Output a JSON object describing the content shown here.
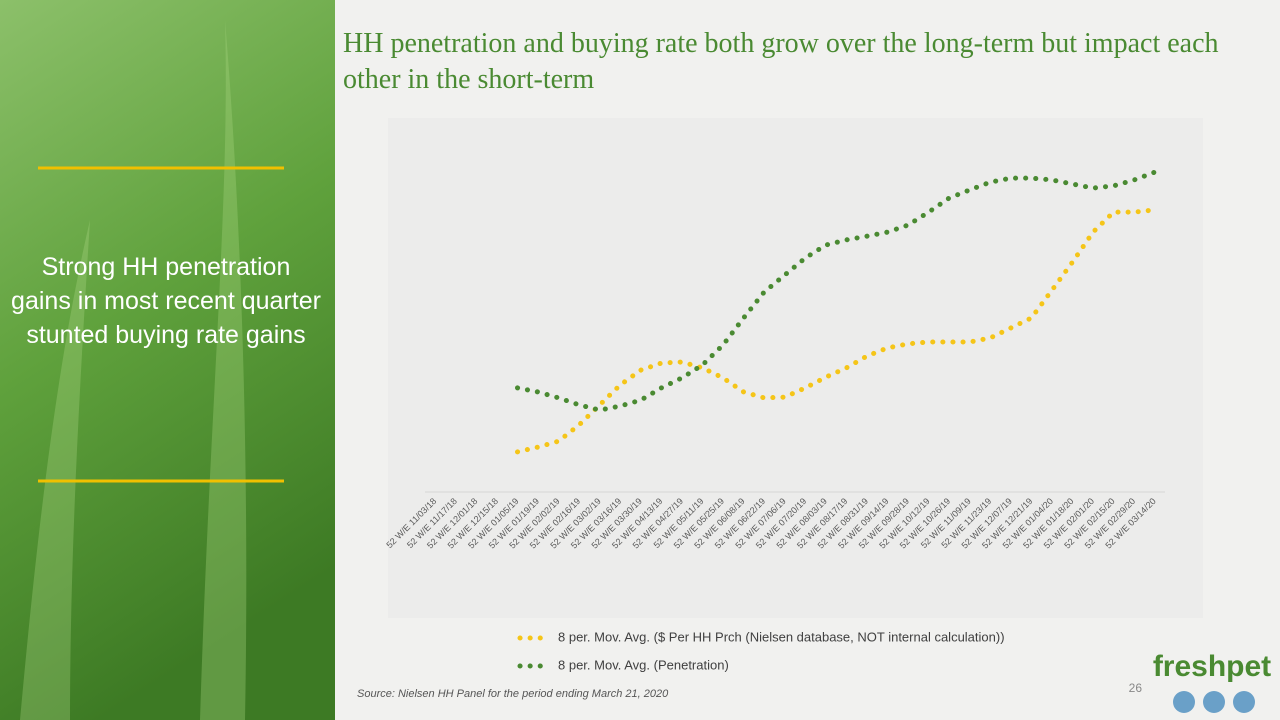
{
  "sidebar_text": "Strong HH penetration gains in most recent quarter stunted buying rate gains",
  "source": "Source:  Nielsen HH Panel for the period ending March 21, 2020",
  "page_number": "26",
  "logo": "freshpet",
  "chart_data": {
    "type": "line",
    "title": "HH penetration and buying rate both grow over the long-term but impact each other in the short-term",
    "categories": [
      "52 W/E 11/03/18",
      "52 W/E 11/17/18",
      "52 W/E 12/01/18",
      "52 W/E 12/15/18",
      "52 W/E 01/05/19",
      "52 W/E 01/19/19",
      "52 W/E 02/02/19",
      "52 W/E 02/16/19",
      "52 W/E 03/02/19",
      "52 W/E 03/16/19",
      "52 W/E 03/30/19",
      "52 W/E 04/13/19",
      "52 W/E 04/27/19",
      "52 W/E 05/11/19",
      "52 W/E 05/25/19",
      "52 W/E 06/08/19",
      "52 W/E 06/22/19",
      "52 W/E 07/06/19",
      "52 W/E 07/20/19",
      "52 W/E 08/03/19",
      "52 W/E 08/17/19",
      "52 W/E 08/31/19",
      "52 W/E 09/14/19",
      "52 W/E 09/28/19",
      "52 W/E 10/12/19",
      "52 W/E 10/26/19",
      "52 W/E 11/09/19",
      "52 W/E 11/23/19",
      "52 W/E 12/07/19",
      "52 W/E 12/21/19",
      "52 W/E 01/04/20",
      "52 W/E 01/18/20",
      "52 W/E 02/01/20",
      "52 W/E 02/15/20",
      "52 W/E 02/29/20",
      "52 W/E 03/14/20"
    ],
    "series": [
      {
        "name": "8 per. Mov. Avg. ($ Per HH Prch (Nielsen database, NOT internal calculation))",
        "color": "#f5c518",
        "values": [
          null,
          null,
          null,
          null,
          10.3,
          11.6,
          13.2,
          17.6,
          23,
          28.4,
          32.4,
          34.3,
          34.6,
          33,
          30.3,
          26.5,
          24.9,
          25.1,
          27.6,
          30.5,
          33,
          36.2,
          38.4,
          39.5,
          40,
          40,
          40,
          41.1,
          43.8,
          46.5,
          54,
          61.6,
          69.7,
          75.1,
          75.1,
          75.7
        ]
      },
      {
        "name": "8 per. Mov. Avg. (Penetration)",
        "color": "#4a8a32",
        "values": [
          null,
          null,
          null,
          null,
          27.6,
          26.5,
          24.9,
          23,
          21.6,
          22.7,
          24.3,
          27.6,
          30.3,
          33.8,
          39.2,
          46.5,
          53.5,
          58.1,
          62.7,
          66.2,
          67.6,
          68.6,
          69.7,
          71.6,
          75.1,
          78.9,
          81.1,
          83.2,
          84.3,
          84.3,
          83.8,
          82.7,
          81.6,
          82.2,
          83.8,
          85.9
        ]
      }
    ],
    "ylim": [
      0,
      100
    ]
  }
}
